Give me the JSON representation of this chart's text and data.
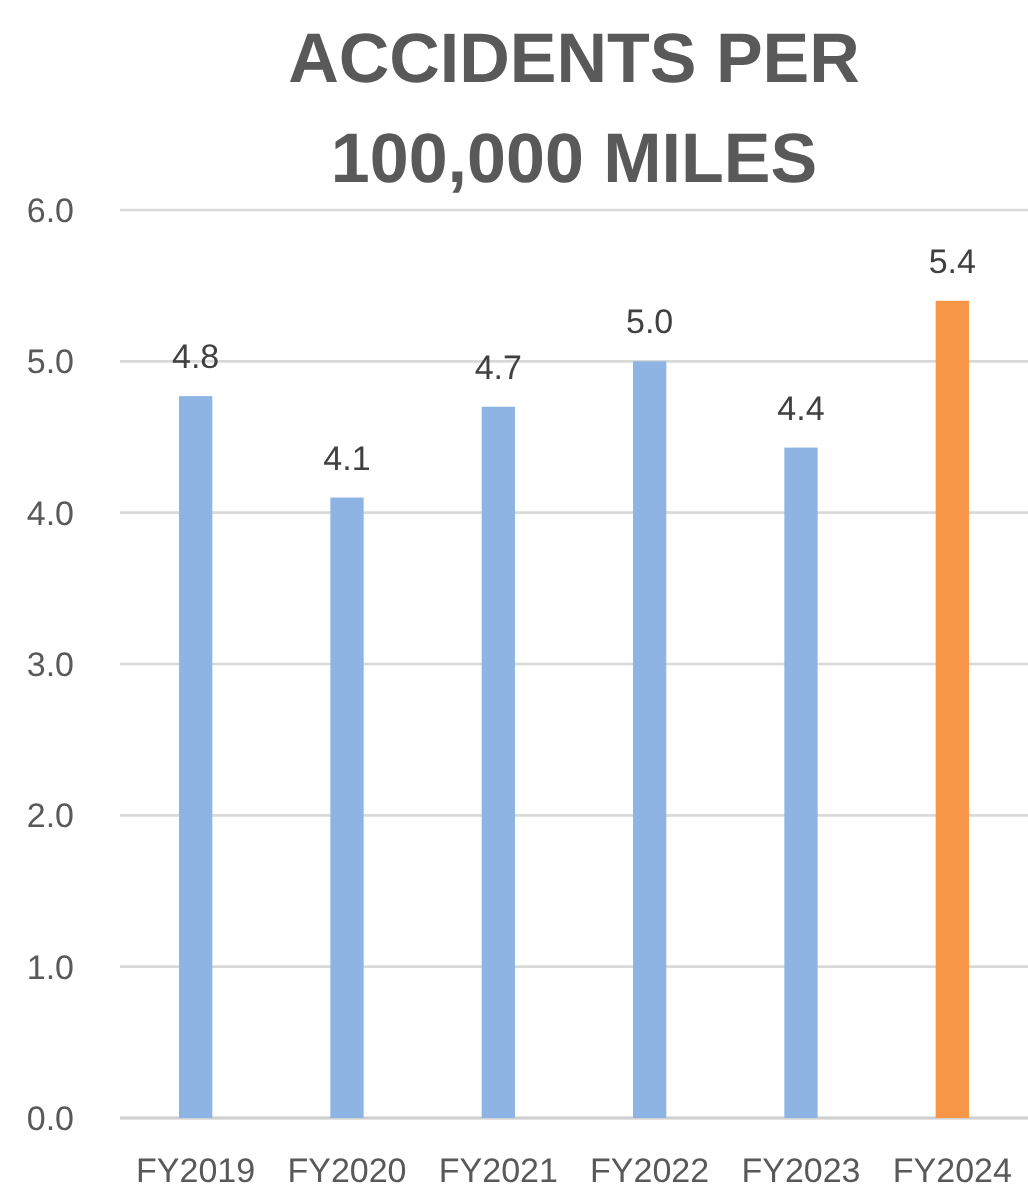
{
  "chart_data": {
    "type": "bar",
    "title": "ACCIDENTS PER 100,000 MILES",
    "categories": [
      "FY2019",
      "FY2020",
      "FY2021",
      "FY2022",
      "FY2023",
      "FY2024"
    ],
    "values": [
      4.77,
      4.1,
      4.7,
      5.0,
      4.43,
      5.4
    ],
    "value_labels": [
      "4.8",
      "4.1",
      "4.7",
      "5.0",
      "4.4",
      "5.4"
    ],
    "colors": [
      "#8eb4e3",
      "#8eb4e3",
      "#8eb4e3",
      "#8eb4e3",
      "#8eb4e3",
      "#f79646"
    ],
    "ylim": [
      0,
      6
    ],
    "yticks": [
      {
        "value": 0,
        "label": "0.0"
      },
      {
        "value": 1,
        "label": "1.0"
      },
      {
        "value": 2,
        "label": "2.0"
      },
      {
        "value": 3,
        "label": "3.0"
      },
      {
        "value": 4,
        "label": "4.0"
      },
      {
        "value": 5,
        "label": "5.0"
      },
      {
        "value": 6,
        "label": "6.0"
      }
    ],
    "grid": "y"
  }
}
